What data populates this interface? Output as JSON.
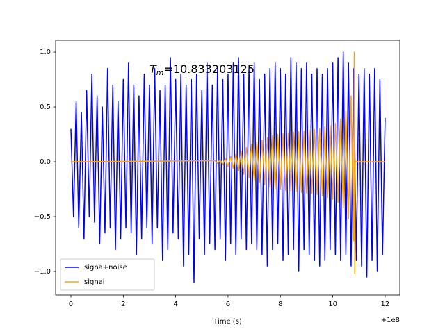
{
  "chart_data": {
    "type": "line",
    "annotation_symbol": "T",
    "annotation_subscript": "m",
    "annotation_value": "=10.833203125",
    "xlabel": "Time (s)",
    "x_offset_label": "+1e8",
    "xlim": [
      -0.584,
      12.56
    ],
    "xticks": [
      0,
      2,
      4,
      6,
      8,
      10,
      12
    ],
    "ylim": [
      -1.215,
      1.108
    ],
    "yticks": [
      {
        "value": -1.0,
        "label": "−1.0"
      },
      {
        "value": -0.5,
        "label": "−0.5"
      },
      {
        "value": 0.0,
        "label": "0.0"
      },
      {
        "value": 0.5,
        "label": "0.5"
      },
      {
        "value": 1.0,
        "label": "1.0"
      }
    ],
    "legend": "lower left",
    "series": [
      {
        "name": "signa+noise",
        "color": "#0000ff",
        "x": [
          0,
          0.1,
          0.2,
          0.3,
          0.4,
          0.5,
          0.6,
          0.7,
          0.8,
          0.9,
          1,
          1.1,
          1.2,
          1.3,
          1.4,
          1.5,
          1.6,
          1.7,
          1.8,
          1.9,
          2,
          2.1,
          2.2,
          2.3,
          2.4,
          2.5,
          2.6,
          2.7,
          2.8,
          2.9,
          3,
          3.1,
          3.2,
          3.3,
          3.4,
          3.5,
          3.6,
          3.7,
          3.8,
          3.9,
          4,
          4.1,
          4.2,
          4.3,
          4.4,
          4.5,
          4.6,
          4.7,
          4.8,
          4.9,
          5,
          5.1,
          5.2,
          5.3,
          5.4,
          5.5,
          5.6,
          5.7,
          5.8,
          5.9,
          6,
          6.1,
          6.2,
          6.3,
          6.4,
          6.5,
          6.6,
          6.7,
          6.8,
          6.9,
          7,
          7.1,
          7.2,
          7.3,
          7.4,
          7.5,
          7.6,
          7.7,
          7.8,
          7.9,
          8,
          8.1,
          8.2,
          8.3,
          8.4,
          8.5,
          8.6,
          8.7,
          8.8,
          8.9,
          9,
          9.1,
          9.2,
          9.3,
          9.4,
          9.5,
          9.6,
          9.7,
          9.8,
          9.9,
          10,
          10.1,
          10.2,
          10.3,
          10.4,
          10.5,
          10.6,
          10.7,
          10.8,
          10.9,
          11,
          11.1,
          11.2,
          11.3,
          11.4,
          11.5,
          11.6,
          11.7,
          11.8,
          11.9,
          12
        ],
        "values": [
          0.3,
          -0.5,
          0.55,
          -0.6,
          0.45,
          -0.7,
          0.65,
          -0.5,
          0.8,
          -0.55,
          0.6,
          -0.75,
          0.5,
          -0.65,
          0.85,
          -0.6,
          0.7,
          -0.8,
          0.55,
          -0.7,
          0.75,
          -0.6,
          0.9,
          -0.65,
          0.7,
          -0.85,
          0.6,
          -0.7,
          0.8,
          -0.6,
          0.7,
          -0.75,
          0.85,
          -0.6,
          0.65,
          -0.9,
          0.7,
          -0.8,
          0.95,
          -0.65,
          0.75,
          -0.7,
          0.8,
          -0.95,
          0.7,
          -0.85,
          0.75,
          -1.1,
          0.8,
          -0.7,
          0.65,
          -0.85,
          0.9,
          -0.75,
          0.7,
          -0.8,
          0.85,
          -0.7,
          0.75,
          -0.9,
          0.8,
          -0.75,
          0.9,
          -0.85,
          0.95,
          -0.7,
          0.8,
          -0.8,
          0.85,
          -0.75,
          0.9,
          -0.8,
          0.75,
          -0.85,
          0.8,
          -0.95,
          0.85,
          -0.8,
          0.9,
          -0.75,
          0.85,
          -0.9,
          0.8,
          -0.85,
          0.95,
          -0.8,
          0.9,
          -1.0,
          0.85,
          -0.8,
          0.9,
          -0.85,
          0.8,
          -0.9,
          0.85,
          -0.95,
          0.8,
          -0.9,
          0.85,
          -0.8,
          0.9,
          -0.85,
          0.95,
          -0.9,
          1.0,
          -0.85,
          0.9,
          -0.95,
          0.85,
          -0.9,
          0.8,
          -0.95,
          0.85,
          -1.05,
          0.8,
          -0.9,
          0.85,
          -1.0,
          0.75,
          -0.85,
          0.4
        ]
      },
      {
        "name": "signal",
        "color": "#ffa500",
        "x": [
          0,
          5.5,
          5.6,
          5.7,
          5.8,
          5.9,
          6,
          6.1,
          6.2,
          6.3,
          6.4,
          6.5,
          6.6,
          6.7,
          6.8,
          6.9,
          7,
          7.1,
          7.2,
          7.3,
          7.4,
          7.5,
          7.6,
          7.7,
          7.8,
          7.9,
          8,
          8.1,
          8.2,
          8.3,
          8.4,
          8.5,
          8.6,
          8.7,
          8.8,
          8.9,
          9,
          9.1,
          9.2,
          9.3,
          9.4,
          9.5,
          9.6,
          9.7,
          9.8,
          9.9,
          10,
          10.1,
          10.2,
          10.3,
          10.4,
          10.5,
          10.6,
          10.7,
          10.8,
          10.82,
          10.84,
          10.86,
          12
        ],
        "values": [
          0,
          0.01,
          -0.015,
          0.02,
          -0.025,
          0.03,
          -0.04,
          0.05,
          -0.06,
          0.07,
          -0.085,
          0.1,
          -0.115,
          0.13,
          -0.145,
          0.16,
          -0.17,
          0.18,
          -0.19,
          0.2,
          -0.21,
          0.22,
          -0.23,
          0.24,
          -0.245,
          0.25,
          -0.25,
          0.255,
          -0.26,
          0.26,
          -0.265,
          0.27,
          -0.27,
          0.275,
          -0.28,
          0.28,
          -0.285,
          0.29,
          -0.29,
          0.295,
          -0.3,
          0.305,
          -0.31,
          0.32,
          -0.325,
          0.33,
          -0.34,
          0.35,
          -0.37,
          0.39,
          -0.42,
          0.46,
          -0.52,
          0.6,
          -0.72,
          1.0,
          -1.02,
          0,
          0
        ]
      }
    ]
  }
}
